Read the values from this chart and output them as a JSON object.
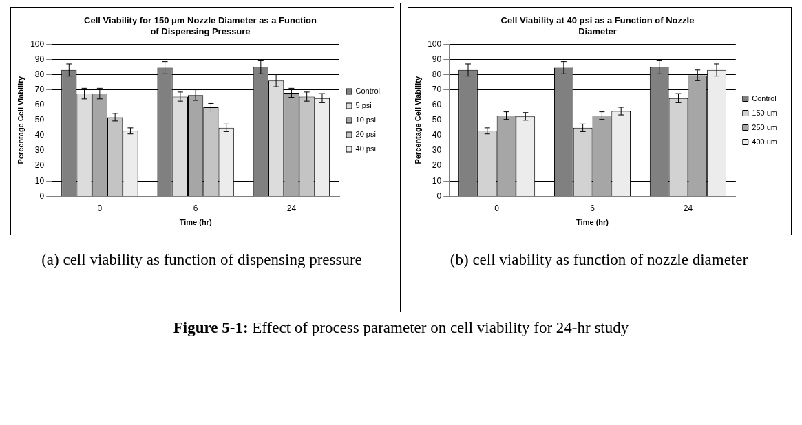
{
  "chart_data": [
    {
      "type": "bar",
      "title": "Cell Viability for 150 μm Nozzle Diameter as a Function of Dispensing Pressure",
      "xlabel": "Time (hr)",
      "ylabel": "Percentage Cell Viability",
      "categories": [
        "0",
        "6",
        "24"
      ],
      "ylim": [
        0,
        100
      ],
      "yticks": [
        0,
        10,
        20,
        30,
        40,
        50,
        60,
        70,
        80,
        90,
        100
      ],
      "grid": "y",
      "legend": "right",
      "series": [
        {
          "name": "Control",
          "color": "#808080",
          "values": [
            83,
            84.5,
            85
          ],
          "errors": [
            4,
            4,
            4.5
          ]
        },
        {
          "name": "5 psi",
          "color": "#dcdcdc",
          "values": [
            67.5,
            65.5,
            76
          ],
          "errors": [
            3.5,
            3,
            4
          ]
        },
        {
          "name": "10 psi",
          "color": "#a6a6a6",
          "values": [
            67.5,
            66.5,
            68
          ],
          "errors": [
            3.5,
            3.5,
            3
          ]
        },
        {
          "name": "20 psi",
          "color": "#c4c4c4",
          "values": [
            52,
            58.5,
            65.5
          ],
          "errors": [
            2.5,
            2.5,
            3
          ]
        },
        {
          "name": "40 psi",
          "color": "#ececec",
          "values": [
            43,
            45,
            64.5
          ],
          "errors": [
            2,
            2.5,
            3
          ]
        }
      ],
      "annotations": [
        "(a) cell viability as function of dispensing pressure"
      ]
    },
    {
      "type": "bar",
      "title": "Cell Viability at 40 psi as a Function of Nozzle Diameter",
      "xlabel": "Time (hr)",
      "ylabel": "Percentage Cell Viability",
      "categories": [
        "0",
        "6",
        "24"
      ],
      "ylim": [
        0,
        100
      ],
      "yticks": [
        0,
        10,
        20,
        30,
        40,
        50,
        60,
        70,
        80,
        90,
        100
      ],
      "grid": "y",
      "legend": "right",
      "series": [
        {
          "name": "Control",
          "color": "#808080",
          "values": [
            83,
            84.5,
            85
          ],
          "errors": [
            4,
            4,
            4.5
          ]
        },
        {
          "name": "150 um",
          "color": "#d2d2d2",
          "values": [
            43,
            45,
            64.5
          ],
          "errors": [
            2,
            2.5,
            3
          ]
        },
        {
          "name": "250 um",
          "color": "#a6a6a6",
          "values": [
            53,
            53,
            79.5
          ],
          "errors": [
            2.5,
            2.5,
            3.5
          ]
        },
        {
          "name": "400 um",
          "color": "#ececec",
          "values": [
            52.5,
            56,
            83
          ],
          "errors": [
            2.5,
            2.5,
            4
          ]
        }
      ],
      "annotations": [
        "(b) cell viability as function of nozzle diameter",
        "Figure 5-1: Effect of process parameter on cell viability for 24-hr study"
      ]
    }
  ]
}
